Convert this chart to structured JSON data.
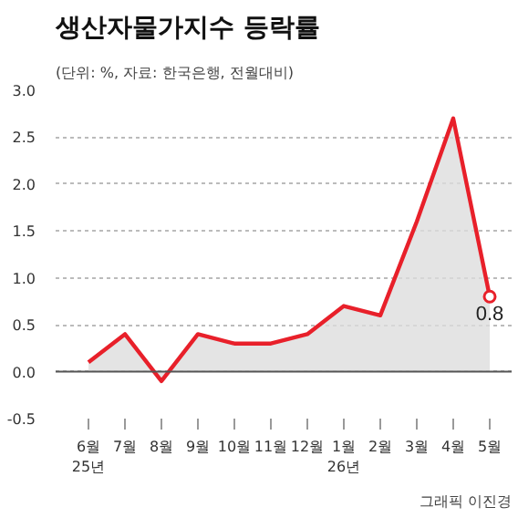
{
  "chart_data": {
    "type": "area",
    "title": "생산자물가지수 등락률",
    "subtitle": "(단위: %, 자료: 한국은행, 전월대비)",
    "categories": [
      "6월\n25년",
      "7월",
      "8월",
      "9월",
      "10월",
      "11월",
      "12월",
      "1월\n26년",
      "2월",
      "3월",
      "4월",
      "5월"
    ],
    "series": [
      {
        "color": "#e8202a",
        "values": [
          0.1,
          0.4,
          -0.1,
          0.4,
          0.3,
          0.3,
          0.4,
          0.7,
          0.6,
          1.6,
          2.7,
          0.8
        ],
        "value_labels": [
          null,
          null,
          null,
          null,
          null,
          null,
          null,
          null,
          null,
          null,
          null,
          "0.8"
        ]
      }
    ],
    "ylim": [
      -0.5,
      3.0
    ],
    "yticks": [
      {
        "value": -0.5,
        "label": "-0.5"
      },
      {
        "value": 0,
        "label": "0.0"
      },
      {
        "value": 0.5,
        "label": "0.5"
      },
      {
        "value": 1,
        "label": "1.0"
      },
      {
        "value": 1.5,
        "label": "1.5"
      },
      {
        "value": 2,
        "label": "2.0"
      },
      {
        "value": 2.5,
        "label": "2.5"
      },
      {
        "value": 3,
        "label": "3.0"
      }
    ],
    "grid": "y",
    "ref_lines": [
      {
        "axis": "y",
        "value": 0,
        "color": "#555555"
      }
    ],
    "annotations": [
      "그래픽 이진경"
    ]
  }
}
